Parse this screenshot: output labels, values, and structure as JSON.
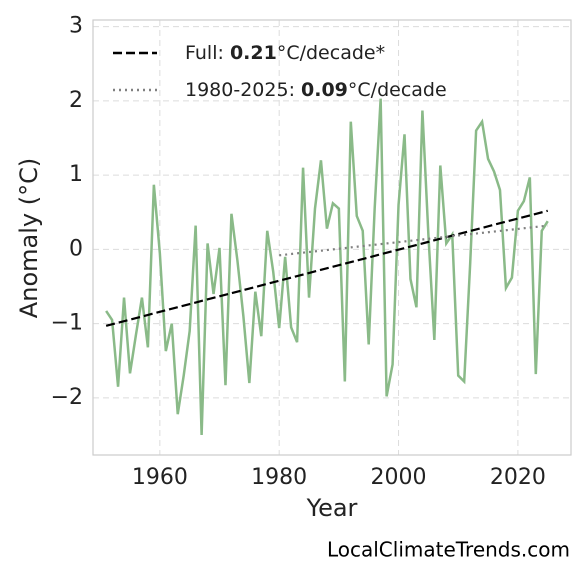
{
  "chart_data": {
    "type": "line",
    "xlabel": "Year",
    "ylabel": "Anomaly (°C)",
    "source": "LocalClimateTrends.com",
    "xlim": [
      1948.8,
      2028.9
    ],
    "ylim": [
      -2.77,
      3.09
    ],
    "xticks": [
      1960,
      1980,
      2000,
      2020
    ],
    "yticks": [
      {
        "value": -2,
        "label": "−2"
      },
      {
        "value": -1,
        "label": "−1"
      },
      0,
      1,
      2,
      3
    ],
    "grid": true,
    "legend": "upper left",
    "series": [
      {
        "color": "#8aba88",
        "style": "solid",
        "x": [
          1951,
          1952,
          1953,
          1954,
          1955,
          1956,
          1957,
          1958,
          1959,
          1960,
          1961,
          1962,
          1963,
          1964,
          1965,
          1966,
          1967,
          1968,
          1969,
          1970,
          1971,
          1972,
          1973,
          1974,
          1975,
          1976,
          1977,
          1978,
          1979,
          1980,
          1981,
          1982,
          1983,
          1984,
          1985,
          1986,
          1987,
          1988,
          1989,
          1990,
          1991,
          1992,
          1993,
          1994,
          1995,
          1996,
          1997,
          1998,
          1999,
          2000,
          2001,
          2002,
          2003,
          2004,
          2005,
          2006,
          2007,
          2008,
          2009,
          2010,
          2011,
          2012,
          2013,
          2014,
          2015,
          2016,
          2017,
          2018,
          2019,
          2020,
          2021,
          2022,
          2023,
          2024,
          2025
        ],
        "values": [
          -0.83,
          -0.95,
          -1.85,
          -0.65,
          -1.67,
          -1.15,
          -0.65,
          -1.32,
          0.87,
          -0.05,
          -1.37,
          -1.0,
          -2.22,
          -1.7,
          -1.1,
          0.32,
          -2.5,
          0.08,
          -0.6,
          0.02,
          -1.83,
          0.48,
          -0.15,
          -0.9,
          -1.8,
          -0.57,
          -1.17,
          0.25,
          -0.3,
          -1.06,
          -0.1,
          -1.05,
          -1.25,
          1.1,
          -0.65,
          0.55,
          1.2,
          0.28,
          0.62,
          0.55,
          -1.78,
          1.72,
          0.45,
          0.25,
          -1.28,
          0.55,
          2.03,
          -1.98,
          -1.55,
          0.6,
          1.55,
          -0.4,
          -0.78,
          1.87,
          0.2,
          -1.22,
          1.13,
          0.08,
          0.2,
          -1.7,
          -1.78,
          -0.2,
          1.6,
          1.72,
          1.22,
          1.05,
          0.8,
          -0.52,
          -0.38,
          0.52,
          0.65,
          0.97,
          -1.68,
          0.25,
          0.38
        ]
      },
      {
        "color": "#000000",
        "style": "dashed",
        "label": {
          "lead": "Full: ",
          "rate": "0.21",
          "unit": "°C/decade*"
        },
        "x": [
          1951,
          2025
        ],
        "values": [
          -1.03,
          0.52
        ]
      },
      {
        "color": "#808080",
        "style": "dotted",
        "label": {
          "lead": "1980-2025: ",
          "rate": "0.09",
          "unit": "°C/decade"
        },
        "x": [
          1980,
          2025
        ],
        "values": [
          -0.08,
          0.32
        ]
      }
    ]
  }
}
